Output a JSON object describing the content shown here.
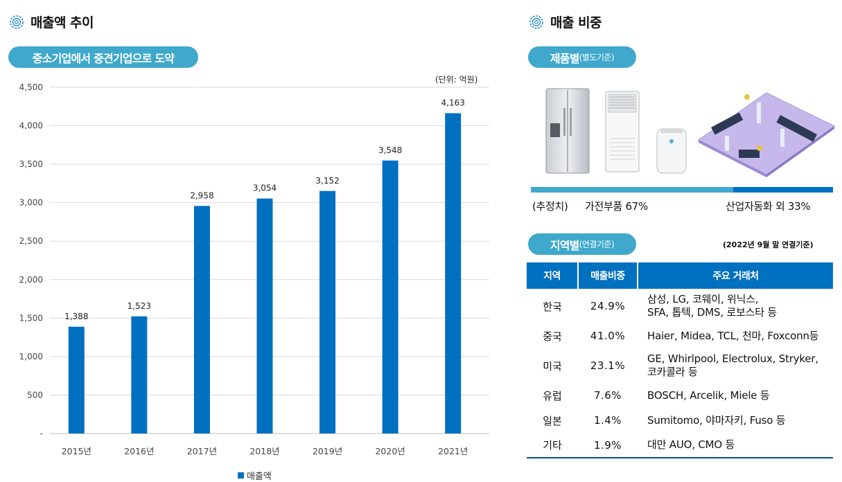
{
  "left": {
    "heading": "매출액 추이",
    "pill": "중소기업에서 중견기업으로 도약",
    "unit": "(단위: 억원)",
    "legend": "매출액"
  },
  "right": {
    "heading": "매출 비중",
    "product_pill_main": "제품별",
    "product_pill_sub": "(별도기준)",
    "estimate_label": "(추정치)",
    "share_left_label": "가전부품 67%",
    "share_right_label": "산업자동화 외 33%",
    "share_left_value": 67,
    "share_right_value": 33,
    "region_pill_main": "지역별",
    "region_pill_sub": "(연결기준)",
    "region_note": "(2022년 9월 말 연결기준)",
    "table_headers": [
      "지역",
      "매출비중",
      "주요 거래처"
    ],
    "table_rows": [
      {
        "region": "한국",
        "share": "24.9%",
        "clients_1": "삼성, LG, 코웨이,  위닉스,",
        "clients_2": "SFA,  톱텍,  DMS, 로보스타 등"
      },
      {
        "region": "중국",
        "share": "41.0%",
        "clients_1": "Haier, Midea, TCL, 천마,  Foxconn등",
        "clients_2": ""
      },
      {
        "region": "미국",
        "share": "23.1%",
        "clients_1": "GE, Whirlpool,  Electrolux, Stryker,",
        "clients_2": "코카콜라 등"
      },
      {
        "region": "유럽",
        "share": "7.6%",
        "clients_1": "BOSCH,  Arcelik,  Miele 등",
        "clients_2": ""
      },
      {
        "region": "일본",
        "share": "1.4%",
        "clients_1": "Sumitomo, 야마자키, Fuso 등",
        "clients_2": ""
      },
      {
        "region": "기타",
        "share": "1.9%",
        "clients_1": "대만 AUO, CMO 등",
        "clients_2": ""
      }
    ]
  },
  "colors": {
    "bar": "#0070c0",
    "pill": "#3fa8cc",
    "table_header": "#0070c0"
  },
  "chart_data": {
    "type": "bar",
    "categories": [
      "2015년",
      "2016년",
      "2017년",
      "2018년",
      "2019년",
      "2020년",
      "2021년"
    ],
    "series": [
      {
        "name": "매출액",
        "values": [
          1388,
          1523,
          2958,
          3054,
          3152,
          3548,
          4163
        ]
      }
    ],
    "value_labels": [
      "1,388",
      "1,523",
      "2,958",
      "3,054",
      "3,152",
      "3,548",
      "4,163"
    ],
    "y_ticks": [
      0,
      500,
      1000,
      1500,
      2000,
      2500,
      3000,
      3500,
      4000,
      4500
    ],
    "y_tick_labels": [
      "-",
      "500",
      "1,000",
      "1,500",
      "2,000",
      "2,500",
      "3,000",
      "3,500",
      "4,000",
      "4,500"
    ],
    "ylim": [
      0,
      4500
    ],
    "grid": true,
    "legend_position": "bottom",
    "title": "",
    "xlabel": "",
    "ylabel": ""
  }
}
